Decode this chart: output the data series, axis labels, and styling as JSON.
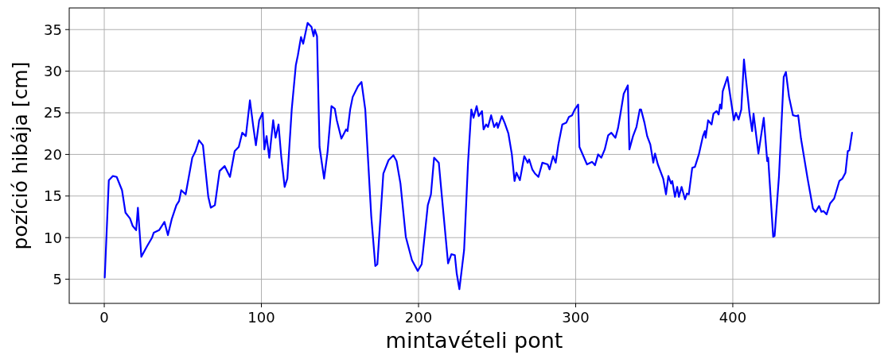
{
  "chart_data": {
    "type": "line",
    "xlabel": "mintavételi pont",
    "ylabel": "pozíció hibája [cm]",
    "xlim": [
      -22.3,
      493.2
    ],
    "ylim": [
      2.1,
      37.6
    ],
    "xticks": [
      0,
      100,
      200,
      300,
      400
    ],
    "yticks": [
      5,
      10,
      15,
      20,
      25,
      30,
      35
    ],
    "grid": true,
    "marker": "none",
    "line_style": "solid",
    "series": [
      {
        "color": "#0000ff",
        "x": [
          0.3,
          2.9,
          5.4,
          7.9,
          11.3,
          13.5,
          16.4,
          18.1,
          20.3,
          21.4,
          23.6,
          27.3,
          30.4,
          31.5,
          34.9,
          38.3,
          40.5,
          42.9,
          45.9,
          47.6,
          49,
          51.8,
          56,
          58.1,
          60.3,
          62.8,
          66.2,
          67.8,
          70.4,
          73.4,
          76.6,
          80,
          83,
          85.6,
          87.8,
          90.1,
          92.7,
          94.8,
          96.5,
          98.6,
          100.8,
          101.9,
          103.3,
          105,
          107.5,
          109,
          110.9,
          112.6,
          114.8,
          116.5,
          119.3,
          121.9,
          123.2,
          125.2,
          126.6,
          129.4,
          131.9,
          133.2,
          134,
          135.4,
          137,
          139.9,
          142.1,
          144.6,
          146.7,
          148,
          150.9,
          153.9,
          154.8,
          156.5,
          158.1,
          161.5,
          163.7,
          166.1,
          169.9,
          172.5,
          173.8,
          177.6,
          180.9,
          184,
          186,
          188.5,
          191.9,
          195.8,
          199.5,
          202,
          205.9,
          207.9,
          209.9,
          212.9,
          214.3,
          218.8,
          220.9,
          223.1,
          224.3,
          226,
          229,
          231.5,
          233.6,
          235,
          237,
          238.3,
          240.4,
          241.4,
          243,
          244.2,
          246.2,
          248.1,
          249.8,
          250.5,
          253,
          254.8,
          257.2,
          259.4,
          261.1,
          262.3,
          264.5,
          267.3,
          269.5,
          270.4,
          272.4,
          274.1,
          276.3,
          278.8,
          282.2,
          283.4,
          285.6,
          287.3,
          289,
          291.5,
          294,
          295.7,
          297.7,
          299.4,
          301.6,
          302.4,
          307.2,
          310.5,
          312.3,
          314.3,
          316.3,
          318.5,
          320.7,
          322.7,
          325.3,
          327,
          328.6,
          330.6,
          333.2,
          334.2,
          336.5,
          338.7,
          340.8,
          341.6,
          343.8,
          345.5,
          347.5,
          349.4,
          350.5,
          352.3,
          355.7,
          357.5,
          359,
          360.7,
          361.5,
          363.2,
          364.6,
          365.7,
          367.4,
          369.6,
          370.8,
          372,
          374.2,
          375.9,
          378.4,
          381,
          382.2,
          382.7,
          384.3,
          386.5,
          387.7,
          389.7,
          391,
          391.9,
          392.8,
          393.6,
          396.6,
          400.7,
          402,
          403.7,
          405.4,
          407.1,
          410.6,
          412.3,
          413.2,
          416.3,
          419.7,
          421.9,
          422.5,
          425.7,
          426.6,
          429.4,
          432.4,
          433.8,
          435.8,
          438.3,
          440.5,
          441.6,
          443.4,
          447.6,
          451,
          452.7,
          454.9,
          456.4,
          457.7,
          459.7,
          461.9,
          464.5,
          467.8,
          469.8,
          471.7,
          473.2,
          474.2,
          475.9
        ],
        "values": [
          5.2,
          16.9,
          17.4,
          17.3,
          15.7,
          13,
          12.3,
          11.4,
          10.9,
          13.6,
          7.7,
          9,
          10,
          10.6,
          10.9,
          11.9,
          10.3,
          12.2,
          13.9,
          14.4,
          15.7,
          15.2,
          19.6,
          20.4,
          21.7,
          21.1,
          14.9,
          13.6,
          13.9,
          18,
          18.6,
          17.3,
          20.4,
          20.9,
          22.6,
          22.2,
          26.5,
          23.4,
          21.1,
          24.1,
          25,
          20.6,
          22.2,
          19.6,
          24.1,
          22,
          23.6,
          19.8,
          16.1,
          17.1,
          25.4,
          30.7,
          31.9,
          34.1,
          33.3,
          35.8,
          35.3,
          34.2,
          35,
          34.2,
          20.9,
          17.1,
          20.3,
          25.8,
          25.5,
          24.1,
          21.9,
          23,
          22.8,
          25.4,
          26.9,
          28.2,
          28.7,
          25.4,
          12.6,
          6.6,
          6.8,
          17.7,
          19.3,
          19.9,
          19.2,
          16.5,
          10.1,
          7.3,
          6,
          6.8,
          13.9,
          15.2,
          19.6,
          19,
          16.1,
          6.9,
          8,
          7.9,
          5.7,
          3.8,
          8.5,
          19,
          25.4,
          24.4,
          25.8,
          24.6,
          25.2,
          23,
          23.6,
          23.3,
          24.7,
          23.3,
          23.8,
          23.2,
          24.6,
          23.8,
          22.5,
          20,
          16.8,
          17.8,
          16.9,
          19.8,
          19,
          19.4,
          18.2,
          17.7,
          17.3,
          19,
          18.8,
          18.2,
          19.8,
          19,
          21.2,
          23.6,
          23.8,
          24.5,
          24.7,
          25.4,
          26,
          20.9,
          18.8,
          19.1,
          18.7,
          20,
          19.6,
          20.6,
          22.3,
          22.6,
          22,
          23.2,
          25,
          27.3,
          28.3,
          20.6,
          22.2,
          23.3,
          25.4,
          25.4,
          23.8,
          22.2,
          21.2,
          19,
          20.1,
          18.8,
          17.1,
          15.2,
          17.4,
          16.5,
          16.8,
          14.9,
          16.1,
          14.9,
          16.1,
          14.6,
          15.3,
          15.2,
          18.4,
          18.5,
          20,
          22.2,
          22.8,
          22,
          24.1,
          23.6,
          24.9,
          25.2,
          24.8,
          26,
          25.5,
          27.6,
          29.3,
          24.1,
          25,
          24.2,
          25.4,
          31.4,
          25,
          22.8,
          24.9,
          20.1,
          24.4,
          19.2,
          19.6,
          10.1,
          10.2,
          17.4,
          29.3,
          29.9,
          26.9,
          24.7,
          24.6,
          24.7,
          21.9,
          17.1,
          13.5,
          13.1,
          13.8,
          13.1,
          13.2,
          12.8,
          14.1,
          14.7,
          16.8,
          17.1,
          17.8,
          20.4,
          20.5,
          22.6
        ]
      }
    ]
  }
}
